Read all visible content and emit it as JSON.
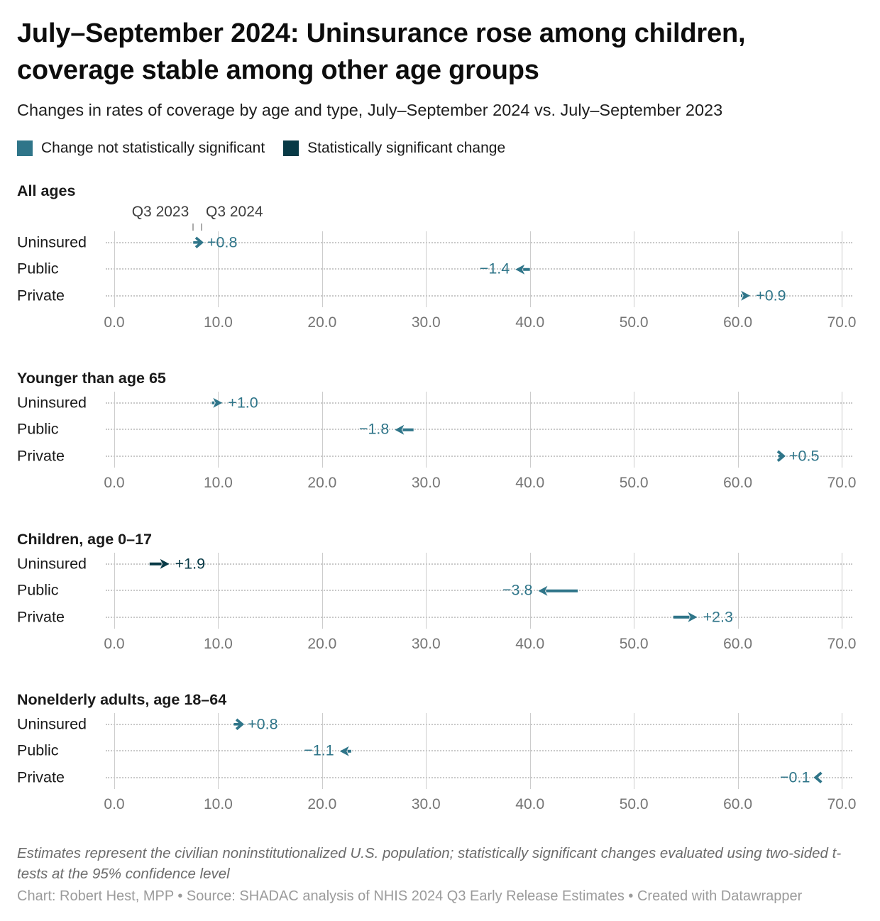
{
  "header": {
    "title": "July–September 2024: Uninsurance rose among children,\ncoverage stable among other age groups",
    "subtitle": "Changes in rates of coverage by age and type, July–September 2024 vs. July–September 2023"
  },
  "legend": {
    "items": [
      {
        "label": "Change not statistically significant",
        "color": "#2f7589",
        "significant": false
      },
      {
        "label": "Statistically significant change",
        "color": "#083a46",
        "significant": true
      }
    ]
  },
  "chart_data": {
    "type": "arrow",
    "unit": "percent of population with coverage type",
    "x_axis": {
      "min": 0,
      "max": 70,
      "ticks": [
        0,
        10,
        20,
        30,
        40,
        50,
        60,
        70
      ],
      "tick_labels": [
        "0.0",
        "10.0",
        "20.0",
        "30.0",
        "40.0",
        "50.0",
        "60.0",
        "70.0"
      ],
      "grid": true
    },
    "annotations": {
      "start_label": "Q3 2023",
      "end_label": "Q3 2024"
    },
    "colors": {
      "not_significant": "#2f7589",
      "significant": "#083a46"
    },
    "groups": [
      {
        "title": "All ages",
        "rows": [
          {
            "label": "Uninsured",
            "start": 7.6,
            "end": 8.4,
            "change": "+0.8",
            "significant": false
          },
          {
            "label": "Public",
            "start": 40.0,
            "end": 38.6,
            "change": "−1.4",
            "significant": false
          },
          {
            "label": "Private",
            "start": 60.3,
            "end": 61.2,
            "change": "+0.9",
            "significant": false
          }
        ]
      },
      {
        "title": "Younger than age 65",
        "rows": [
          {
            "label": "Uninsured",
            "start": 9.4,
            "end": 10.4,
            "change": "+1.0",
            "significant": false
          },
          {
            "label": "Public",
            "start": 28.8,
            "end": 27.0,
            "change": "−1.8",
            "significant": false
          },
          {
            "label": "Private",
            "start": 63.9,
            "end": 64.4,
            "change": "+0.5",
            "significant": false
          }
        ]
      },
      {
        "title": "Children, age 0–17",
        "rows": [
          {
            "label": "Uninsured",
            "start": 3.4,
            "end": 5.3,
            "change": "+1.9",
            "significant": true
          },
          {
            "label": "Public",
            "start": 44.6,
            "end": 40.8,
            "change": "−3.8",
            "significant": false
          },
          {
            "label": "Private",
            "start": 53.8,
            "end": 56.1,
            "change": "+2.3",
            "significant": false
          }
        ]
      },
      {
        "title": "Nonelderly adults, age 18–64",
        "rows": [
          {
            "label": "Uninsured",
            "start": 11.5,
            "end": 12.3,
            "change": "+0.8",
            "significant": false
          },
          {
            "label": "Public",
            "start": 22.8,
            "end": 21.7,
            "change": "−1.1",
            "significant": false
          },
          {
            "label": "Private",
            "start": 67.6,
            "end": 67.5,
            "change": "−0.1",
            "significant": false
          }
        ]
      }
    ]
  },
  "footer": {
    "note": "Estimates represent the civilian noninstitutionalized U.S. population; statistically significant changes evaluated using two-sided t-tests at the 95% confidence level",
    "credit": "Chart: Robert Hest, MPP • Source: SHADAC analysis of NHIS 2024 Q3 Early Release Estimates • Created with Datawrapper"
  }
}
